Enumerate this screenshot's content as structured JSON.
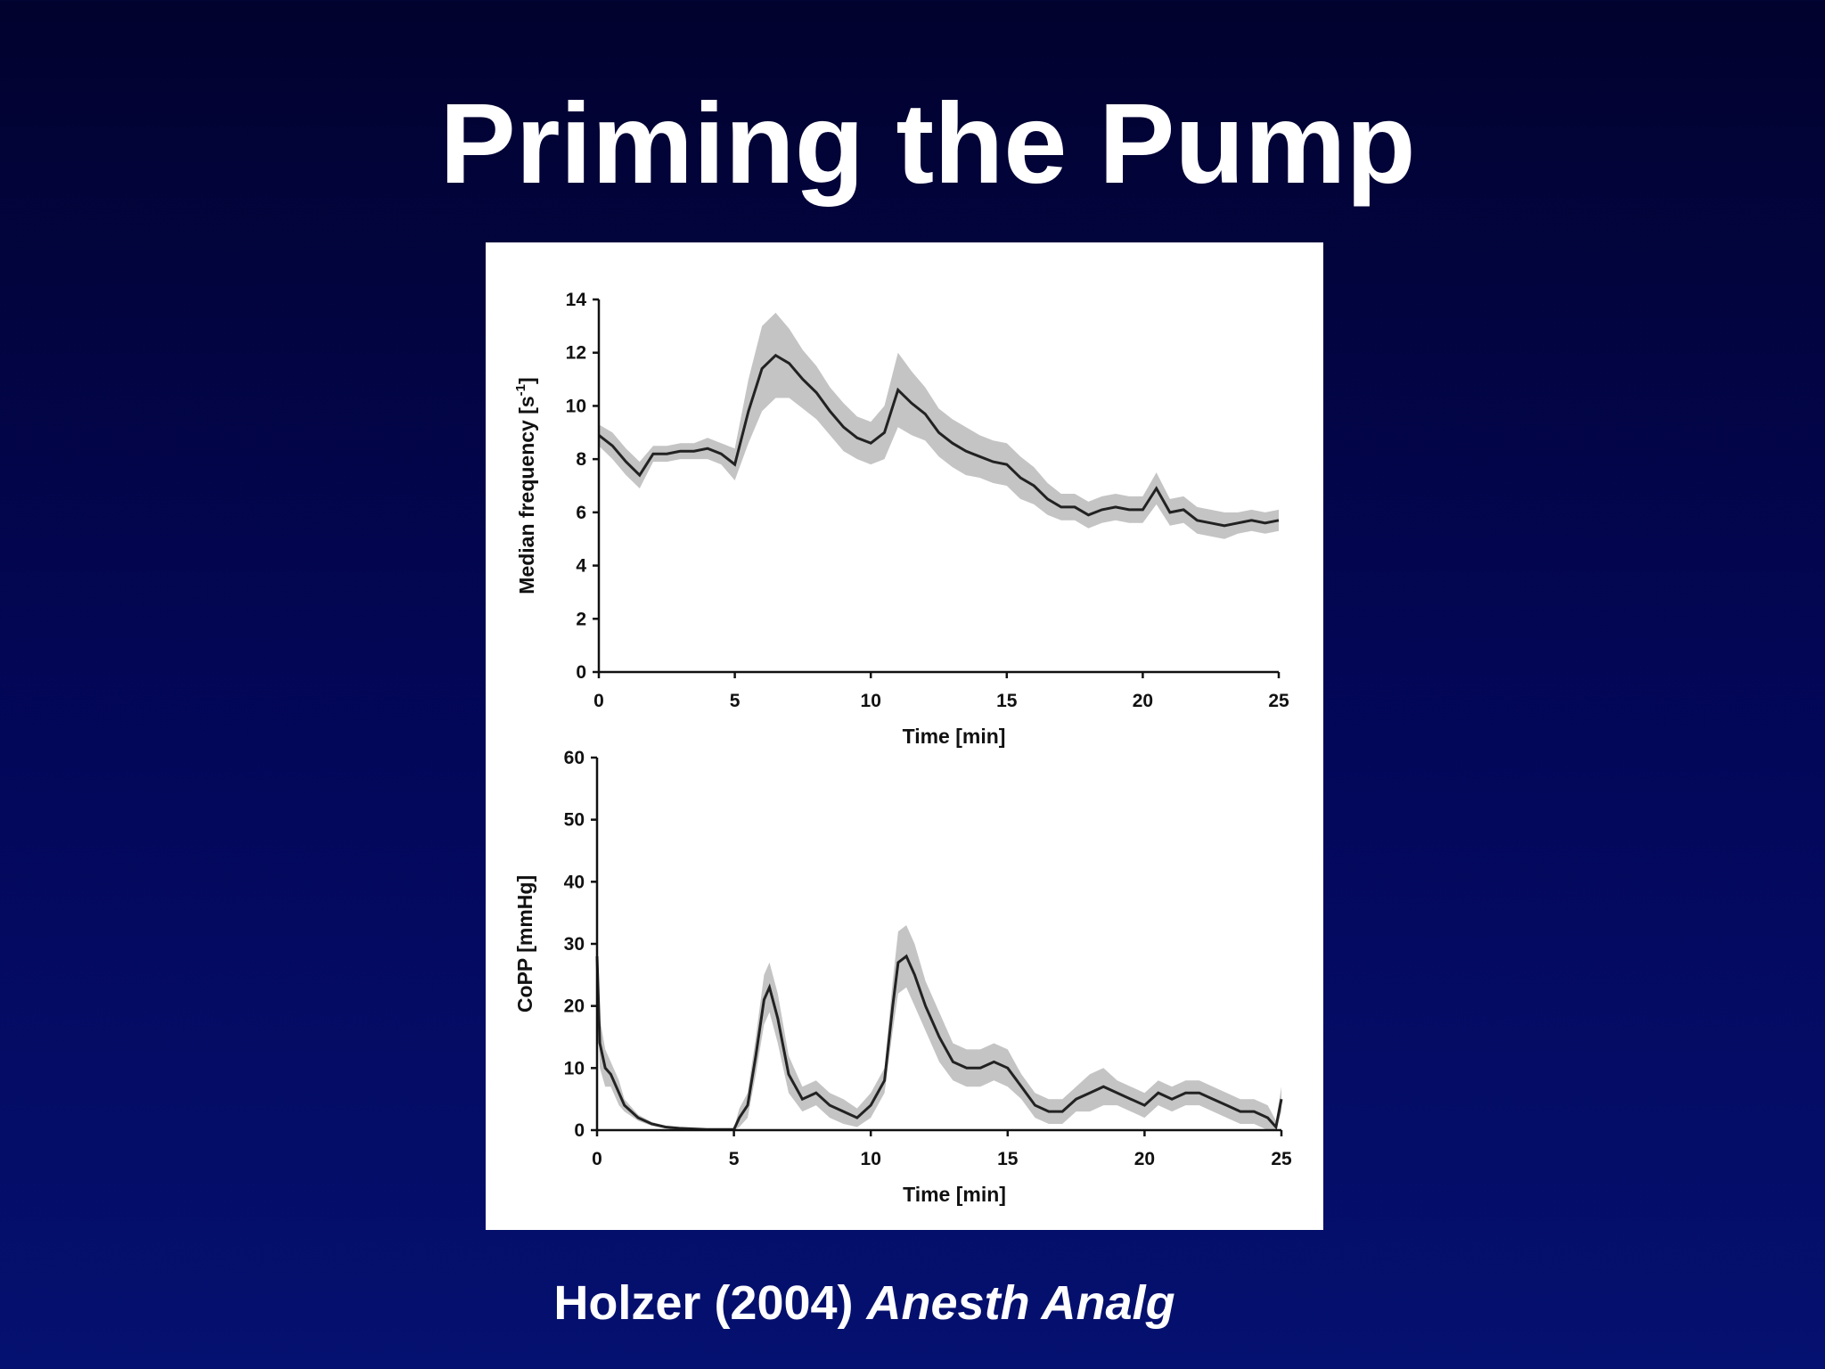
{
  "slide": {
    "title": "Priming the Pump",
    "citation_author": "Holzer (2004) ",
    "citation_journal": "Anesth Analg"
  },
  "colors": {
    "background_top": "#02022e",
    "background_bottom": "#051170",
    "line": "#222222",
    "band": "#bdbdbd"
  },
  "chart_data": [
    {
      "type": "line",
      "title": "",
      "xlabel": "Time [min]",
      "ylabel": "Median frequency [s",
      "ylabel_sup": "-1",
      "ylabel_end": "]",
      "xlim": [
        0,
        25
      ],
      "ylim": [
        0,
        14
      ],
      "xticks": [
        0,
        5,
        10,
        15,
        20,
        25
      ],
      "yticks": [
        0,
        2,
        4,
        6,
        8,
        10,
        12,
        14
      ],
      "grid": false,
      "series": [
        {
          "x": [
            0,
            0.5,
            1,
            1.5,
            2,
            2.5,
            3,
            3.5,
            4,
            4.5,
            5,
            5.5,
            6,
            6.5,
            7,
            7.5,
            8,
            8.5,
            9,
            9.5,
            10,
            10.5,
            11,
            11.5,
            12,
            12.5,
            13,
            13.5,
            14,
            14.5,
            15,
            15.5,
            16,
            16.5,
            17,
            17.5,
            18,
            18.5,
            19,
            19.5,
            20,
            20.5,
            21,
            21.5,
            22,
            22.5,
            23,
            23.5,
            24,
            24.5,
            25
          ],
          "y": [
            8.9,
            8.5,
            7.9,
            7.4,
            8.2,
            8.2,
            8.3,
            8.3,
            8.4,
            8.2,
            7.8,
            9.8,
            11.4,
            11.9,
            11.6,
            11.0,
            10.5,
            9.8,
            9.2,
            8.8,
            8.6,
            9.0,
            10.6,
            10.1,
            9.7,
            9.0,
            8.6,
            8.3,
            8.1,
            7.9,
            7.8,
            7.3,
            7.0,
            6.5,
            6.2,
            6.2,
            5.9,
            6.1,
            6.2,
            6.1,
            6.1,
            6.9,
            6.0,
            6.1,
            5.7,
            5.6,
            5.5,
            5.6,
            5.7,
            5.6,
            5.7
          ],
          "spread": [
            0.4,
            0.5,
            0.5,
            0.5,
            0.3,
            0.3,
            0.3,
            0.3,
            0.4,
            0.4,
            0.6,
            1.2,
            1.6,
            1.6,
            1.3,
            1.1,
            1.0,
            0.9,
            0.9,
            0.8,
            0.8,
            1.0,
            1.4,
            1.2,
            1.0,
            0.9,
            0.9,
            0.9,
            0.8,
            0.8,
            0.8,
            0.8,
            0.7,
            0.6,
            0.5,
            0.5,
            0.5,
            0.5,
            0.5,
            0.5,
            0.5,
            0.6,
            0.5,
            0.5,
            0.5,
            0.5,
            0.5,
            0.4,
            0.4,
            0.4,
            0.4
          ]
        }
      ]
    },
    {
      "type": "line",
      "title": "",
      "xlabel": "Time [min]",
      "ylabel": "CoPP [mmHg]",
      "xlim": [
        0,
        25
      ],
      "ylim": [
        0,
        60
      ],
      "xticks": [
        0,
        5,
        10,
        15,
        20,
        25
      ],
      "yticks": [
        0,
        10,
        20,
        30,
        40,
        50,
        60
      ],
      "grid": false,
      "series": [
        {
          "x": [
            0,
            0.1,
            0.3,
            0.5,
            0.8,
            1,
            1.5,
            2,
            2.5,
            3,
            4,
            5,
            5.2,
            5.5,
            5.8,
            6.1,
            6.3,
            6.6,
            7,
            7.5,
            8,
            8.5,
            9,
            9.5,
            10,
            10.5,
            10.8,
            11,
            11.3,
            11.6,
            12,
            12.5,
            13,
            13.5,
            14,
            14.5,
            15,
            15.5,
            16,
            16.5,
            17,
            17.5,
            18,
            18.5,
            19,
            19.5,
            20,
            20.5,
            21,
            21.5,
            22,
            22.5,
            23,
            23.5,
            24,
            24.5,
            24.8,
            25
          ],
          "y": [
            28,
            14,
            10,
            9,
            6,
            4,
            2,
            1,
            0.5,
            0.3,
            0.1,
            0.1,
            2,
            4,
            12,
            21,
            23,
            18,
            9,
            5,
            6,
            4,
            3,
            2,
            4,
            8,
            20,
            27,
            28,
            25,
            20,
            15,
            11,
            10,
            10,
            11,
            10,
            7,
            4,
            3,
            3,
            5,
            6,
            7,
            6,
            5,
            4,
            6,
            5,
            6,
            6,
            5,
            4,
            3,
            3,
            2,
            0.5,
            5
          ],
          "spread": [
            5,
            4,
            3,
            2,
            2,
            1,
            0.5,
            0.3,
            0.2,
            0.1,
            0.1,
            0.2,
            1.5,
            2,
            3,
            4,
            4,
            4,
            3,
            2,
            2,
            2,
            2,
            1.5,
            2,
            2,
            4,
            5,
            5,
            5,
            4,
            4,
            3,
            3,
            3,
            3,
            3,
            2,
            2,
            2,
            2,
            2,
            3,
            3,
            2,
            2,
            2,
            2,
            2,
            2,
            2,
            2,
            2,
            2,
            2,
            2,
            1,
            2
          ]
        }
      ]
    }
  ]
}
